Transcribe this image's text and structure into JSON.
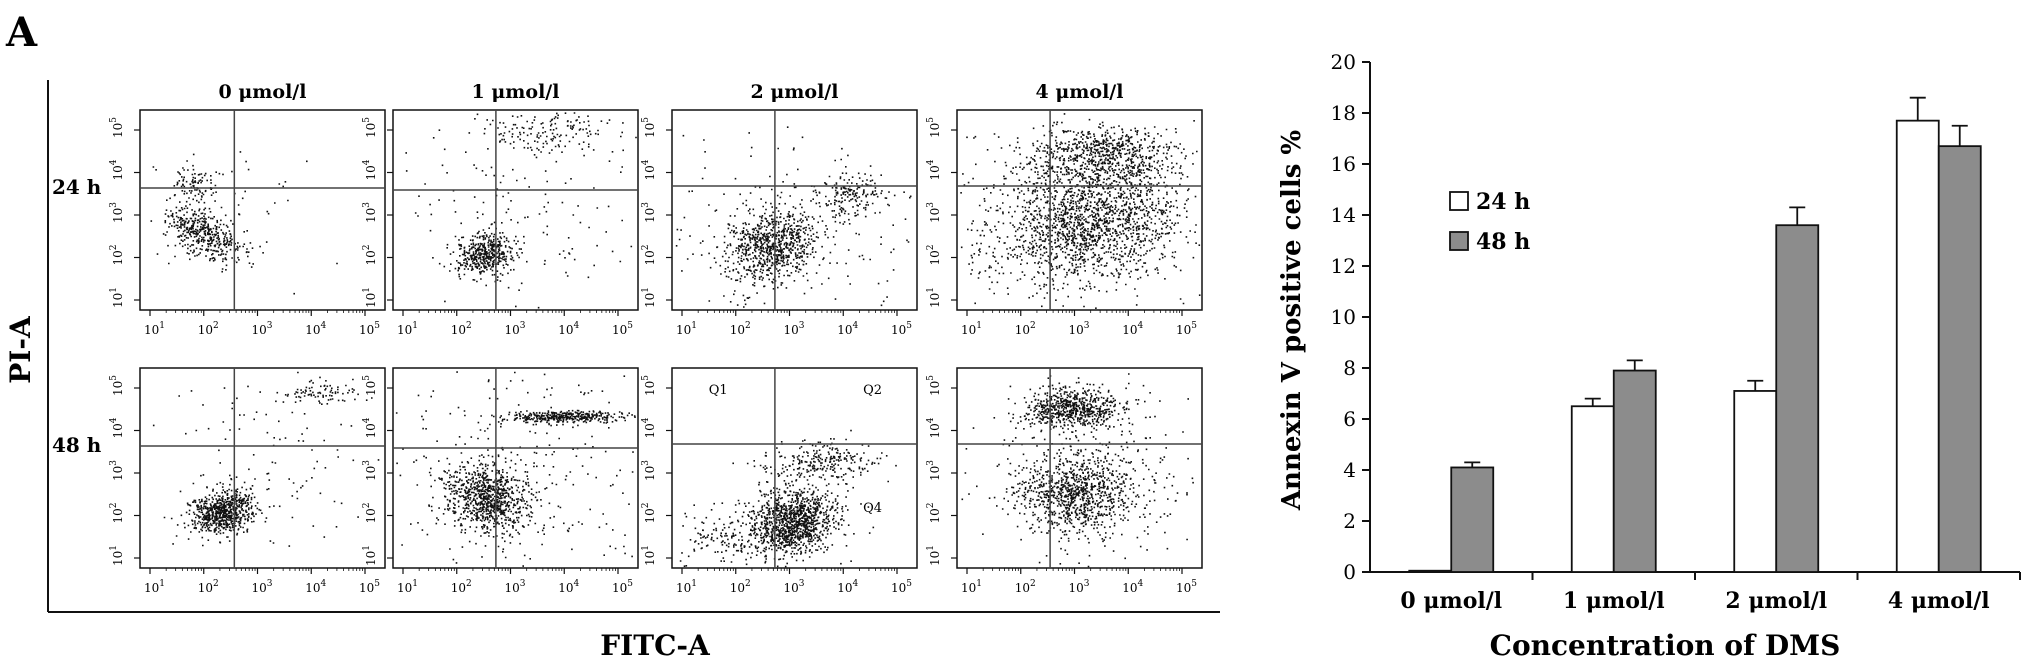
{
  "panel_label": "A",
  "colors": {
    "axis": "#111111",
    "dots": "#111111",
    "bar_24h": "#ffffff",
    "bar_48h": "#8c8c8c",
    "quadrant_line": "#444444"
  },
  "flow": {
    "columns": [
      "0 μmol/l",
      "1 μmol/l",
      "2 μmol/l",
      "4 μmol/l"
    ],
    "rows": [
      "24 h",
      "48 h"
    ],
    "xlabel": "FITC-A",
    "ylabel": "PI-A",
    "tick_exponents": [
      "1",
      "2",
      "3",
      "4",
      "5"
    ],
    "tick_base": "10",
    "quadrant_labels": [
      "Q1",
      "Q2",
      "Q4"
    ]
  },
  "chart_data": {
    "type": "bar",
    "categories": [
      "0 μmol/l",
      "1 μmol/l",
      "2 μmol/l",
      "4 μmol/l"
    ],
    "series": [
      {
        "name": "24 h",
        "values": [
          0.05,
          6.5,
          7.1,
          17.7
        ],
        "errors": [
          0.0,
          0.3,
          0.4,
          0.9
        ]
      },
      {
        "name": "48 h",
        "values": [
          4.1,
          7.9,
          13.6,
          16.7
        ],
        "errors": [
          0.2,
          0.4,
          0.7,
          0.8
        ]
      }
    ],
    "xlabel": "Concentration of DMS",
    "ylabel": "Annexin V positive cells %",
    "ylim": [
      0,
      20
    ],
    "yticks": [
      "0",
      "2",
      "4",
      "6",
      "8",
      "10",
      "12",
      "14",
      "16",
      "18",
      "20"
    ],
    "legend_position": "left",
    "grid": false
  }
}
